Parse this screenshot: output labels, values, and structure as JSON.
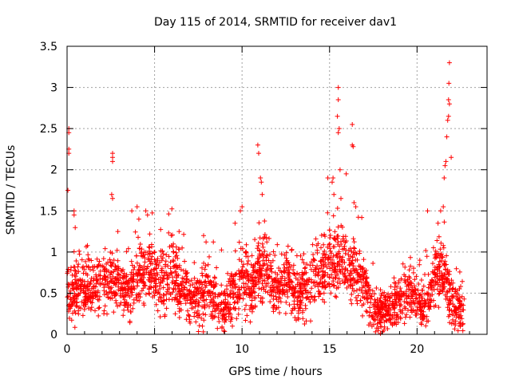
{
  "chart_data": {
    "type": "scatter",
    "title": "Day 115 of 2014, SRMTID for receiver dav1",
    "xlabel": "GPS time / hours",
    "ylabel": "SRMTID / TECUs",
    "xlim": [
      0,
      24
    ],
    "ylim": [
      0,
      3.5
    ],
    "x_ticks": [
      0,
      5,
      10,
      15,
      20
    ],
    "x_tick_labels": [
      "0",
      "5",
      "10",
      "15",
      "20"
    ],
    "y_ticks": [
      0,
      0.5,
      1,
      1.5,
      2,
      2.5,
      3,
      3.5
    ],
    "y_tick_labels": [
      "0",
      "0.5",
      "1",
      "1.5",
      "2",
      "2.5",
      "3",
      "3.5"
    ],
    "grid": true,
    "marker": "+",
    "color": "#ff0000",
    "series": [
      {
        "name": "SRMTID",
        "x_range": [
          0,
          22.7
        ],
        "baseline_profile": [
          [
            0,
            0.5
          ],
          [
            0.5,
            0.55
          ],
          [
            1,
            0.5
          ],
          [
            1.5,
            0.6
          ],
          [
            2,
            0.55
          ],
          [
            2.5,
            0.7
          ],
          [
            3,
            0.6
          ],
          [
            3.5,
            0.5
          ],
          [
            4,
            0.7
          ],
          [
            4.5,
            0.85
          ],
          [
            5,
            0.7
          ],
          [
            5.5,
            0.6
          ],
          [
            6,
            0.75
          ],
          [
            6.5,
            0.65
          ],
          [
            7,
            0.45
          ],
          [
            7.5,
            0.4
          ],
          [
            8,
            0.55
          ],
          [
            8.5,
            0.45
          ],
          [
            9,
            0.35
          ],
          [
            9.5,
            0.5
          ],
          [
            10,
            0.7
          ],
          [
            10.5,
            0.6
          ],
          [
            11,
            0.8
          ],
          [
            11.5,
            0.7
          ],
          [
            12,
            0.55
          ],
          [
            12.5,
            0.65
          ],
          [
            13,
            0.5
          ],
          [
            13.5,
            0.55
          ],
          [
            14,
            0.65
          ],
          [
            14.5,
            0.75
          ],
          [
            15,
            0.85
          ],
          [
            15.5,
            0.95
          ],
          [
            16,
            0.85
          ],
          [
            16.5,
            0.7
          ],
          [
            17,
            0.55
          ],
          [
            17.5,
            0.3
          ],
          [
            18,
            0.25
          ],
          [
            18.5,
            0.3
          ],
          [
            19,
            0.45
          ],
          [
            19.5,
            0.55
          ],
          [
            20,
            0.45
          ],
          [
            20.5,
            0.3
          ],
          [
            21,
            0.7
          ],
          [
            21.5,
            0.8
          ],
          [
            22,
            0.35
          ],
          [
            22.5,
            0.3
          ],
          [
            22.7,
            0.35
          ]
        ],
        "peak_points": [
          [
            0.1,
            2.5
          ],
          [
            0.1,
            2.45
          ],
          [
            0.1,
            2.25
          ],
          [
            0.1,
            2.2
          ],
          [
            0.05,
            1.75
          ],
          [
            0.4,
            1.5
          ],
          [
            0.4,
            1.45
          ],
          [
            2.6,
            2.2
          ],
          [
            2.6,
            2.15
          ],
          [
            2.6,
            2.1
          ],
          [
            2.55,
            1.7
          ],
          [
            2.6,
            1.65
          ],
          [
            2.9,
            1.25
          ],
          [
            3.7,
            1.5
          ],
          [
            4,
            1.55
          ],
          [
            4.1,
            1.4
          ],
          [
            4.5,
            1.5
          ],
          [
            4.6,
            1.45
          ],
          [
            6.4,
            1.25
          ],
          [
            7.8,
            1.2
          ],
          [
            9.6,
            1.35
          ],
          [
            9.9,
            1.5
          ],
          [
            10,
            1.55
          ],
          [
            10.9,
            2.3
          ],
          [
            10.95,
            2.2
          ],
          [
            11.05,
            1.9
          ],
          [
            11.1,
            1.85
          ],
          [
            11.15,
            1.7
          ],
          [
            14.9,
            1.9
          ],
          [
            15.15,
            1.85
          ],
          [
            15.2,
            1.9
          ],
          [
            15.25,
            1.7
          ],
          [
            15.5,
            3.0
          ],
          [
            15.5,
            2.85
          ],
          [
            15.45,
            2.65
          ],
          [
            15.55,
            2.5
          ],
          [
            15.5,
            2.45
          ],
          [
            15.6,
            2.0
          ],
          [
            15.65,
            1.65
          ],
          [
            15.95,
            1.95
          ],
          [
            16.3,
            2.55
          ],
          [
            16.3,
            2.3
          ],
          [
            16.35,
            2.28
          ],
          [
            16.4,
            1.6
          ],
          [
            16.5,
            1.55
          ],
          [
            20.6,
            1.5
          ],
          [
            21.2,
            1.35
          ],
          [
            21.35,
            1.5
          ],
          [
            21.5,
            1.55
          ],
          [
            21.55,
            1.9
          ],
          [
            21.6,
            2.05
          ],
          [
            21.65,
            2.1
          ],
          [
            21.7,
            2.4
          ],
          [
            21.75,
            2.6
          ],
          [
            21.8,
            2.65
          ],
          [
            21.85,
            2.8
          ],
          [
            21.8,
            2.85
          ],
          [
            21.82,
            3.05
          ],
          [
            21.85,
            3.3
          ],
          [
            21.95,
            2.15
          ]
        ],
        "point_count": 2600
      }
    ]
  }
}
